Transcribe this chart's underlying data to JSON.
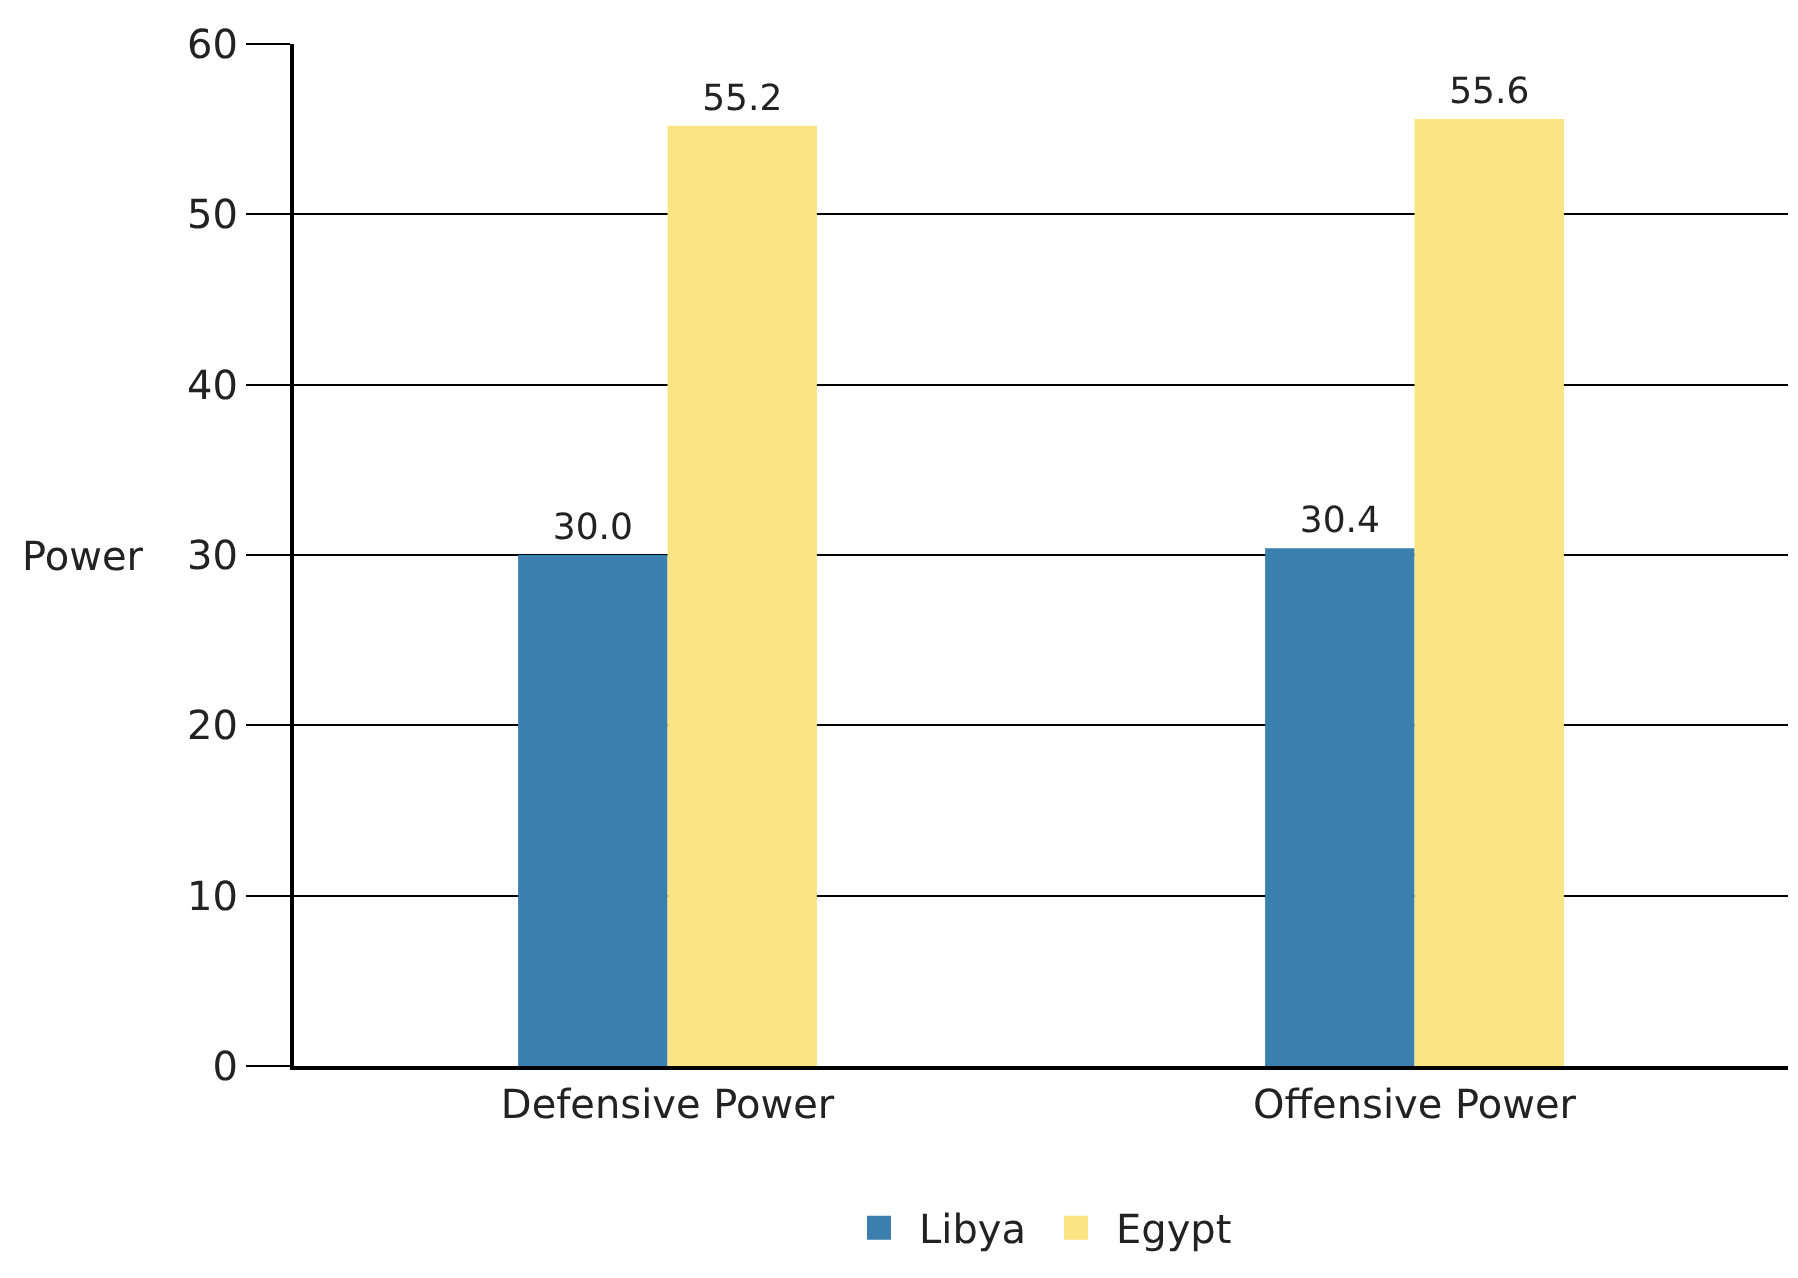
{
  "chart_data": {
    "type": "bar",
    "ylabel": "Power",
    "categories": [
      "Defensive Power",
      "Offensive Power"
    ],
    "series": [
      {
        "name": "Libya",
        "color": "#3a7fad",
        "values": [
          30.0,
          30.4
        ],
        "value_labels": [
          "30.0",
          "30.4"
        ]
      },
      {
        "name": "Egypt",
        "color": "#fbe484",
        "values": [
          55.2,
          55.6
        ],
        "value_labels": [
          "55.2",
          "55.6"
        ]
      }
    ],
    "ylim": [
      0,
      60
    ],
    "yticks": [
      0,
      10,
      20,
      30,
      40,
      50,
      60
    ],
    "grid": "y",
    "legend": "bottom"
  }
}
